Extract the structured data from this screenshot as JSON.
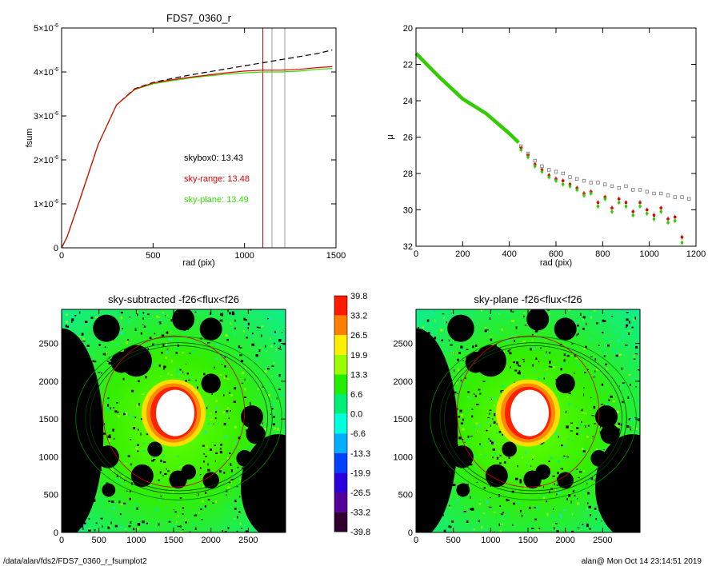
{
  "charts": {
    "growth": {
      "type": "line",
      "title": "FDS7_0360_r",
      "xlabel": "rad (pix)",
      "ylabel": "fsum",
      "xlim": [
        0,
        1500
      ],
      "ylim": [
        0,
        5e-06
      ],
      "xticks": [
        "0",
        "500",
        "1000",
        "1500"
      ],
      "yticks": [
        {
          "v": 0,
          "m": "0",
          "e": ""
        },
        {
          "v": 1e-06,
          "m": "1×10",
          "e": "-6"
        },
        {
          "v": 2e-06,
          "m": "2×10",
          "e": "-6"
        },
        {
          "v": 3e-06,
          "m": "3×10",
          "e": "-6"
        },
        {
          "v": 4e-06,
          "m": "4×10",
          "e": "-6"
        },
        {
          "v": 5e-06,
          "m": "5×10",
          "e": "-6"
        }
      ],
      "vlines": [
        {
          "x": 1100,
          "color": "#e00000"
        },
        {
          "x": 1150,
          "color": "#999999"
        },
        {
          "x": 1220,
          "color": "#999999"
        }
      ],
      "series": [
        {
          "key": "dashed",
          "color": "#000000",
          "dash": "7,4",
          "x": [
            0,
            30,
            100,
            200,
            300,
            400,
            500,
            600,
            700,
            800,
            900,
            1000,
            1100,
            1200,
            1300,
            1400,
            1480
          ],
          "y": [
            0,
            2.5e-07,
            1.1e-06,
            2.35e-06,
            3.25e-06,
            3.62e-06,
            3.76e-06,
            3.85e-06,
            3.93e-06,
            4e-06,
            4.07e-06,
            4.14e-06,
            4.21e-06,
            4.28e-06,
            4.35e-06,
            4.42e-06,
            4.5e-06
          ]
        },
        {
          "key": "sky-plane",
          "color": "#33dd00",
          "dash": "",
          "x": [
            0,
            30,
            100,
            200,
            300,
            400,
            500,
            600,
            700,
            800,
            900,
            1000,
            1100,
            1200,
            1300,
            1400,
            1480
          ],
          "y": [
            0,
            2.5e-07,
            1.1e-06,
            2.35e-06,
            3.25e-06,
            3.6e-06,
            3.73e-06,
            3.8e-06,
            3.86e-06,
            3.91e-06,
            3.95e-06,
            3.98e-06,
            4e-06,
            4e-06,
            4.02e-06,
            4.06e-06,
            4.08e-06
          ]
        },
        {
          "key": "sky-range",
          "color": "#e00000",
          "dash": "",
          "x": [
            0,
            30,
            100,
            200,
            300,
            400,
            500,
            600,
            700,
            800,
            900,
            1000,
            1100,
            1200,
            1300,
            1400,
            1480
          ],
          "y": [
            0,
            2.5e-07,
            1.1e-06,
            2.35e-06,
            3.25e-06,
            3.61e-06,
            3.75e-06,
            3.82e-06,
            3.88e-06,
            3.93e-06,
            3.98e-06,
            4.02e-06,
            4.04e-06,
            4.04e-06,
            4.06e-06,
            4.1e-06,
            4.12e-06
          ]
        }
      ],
      "annotations": [
        {
          "text": "skybox0: 13.43",
          "color": "#000000"
        },
        {
          "text": "sky-range: 13.48",
          "color": "#e00000"
        },
        {
          "text": "sky-plane: 13.49",
          "color": "#33dd00"
        }
      ]
    },
    "profile": {
      "type": "scatter",
      "title": "",
      "xlabel": "rad (pix)",
      "ylabel": "μ",
      "xlim": [
        0,
        1200
      ],
      "ylim": [
        20,
        32
      ],
      "y_inverted": true,
      "xticks": [
        "0",
        "200",
        "400",
        "600",
        "800",
        "1000",
        "1200"
      ],
      "yticks": [
        "20",
        "22",
        "24",
        "26",
        "28",
        "30",
        "32"
      ],
      "series": [
        {
          "key": "skybox0",
          "color": "#777777",
          "marker": "square",
          "x": [
            450,
            480,
            510,
            540,
            570,
            600,
            630,
            660,
            690,
            720,
            750,
            780,
            810,
            840,
            870,
            900,
            930,
            960,
            990,
            1020,
            1050,
            1080,
            1110,
            1140,
            1170
          ],
          "y": [
            26.5,
            26.9,
            27.3,
            27.6,
            27.8,
            27.9,
            28.0,
            28.2,
            28.3,
            28.4,
            28.5,
            28.5,
            28.6,
            28.7,
            28.8,
            28.7,
            28.9,
            28.9,
            29.0,
            29.1,
            29.1,
            29.2,
            29.3,
            29.3,
            29.4
          ]
        },
        {
          "key": "sky-range",
          "color": "#e00000",
          "marker": "circle",
          "x": [
            450,
            480,
            510,
            540,
            570,
            600,
            630,
            660,
            690,
            720,
            750,
            780,
            810,
            840,
            870,
            900,
            930,
            960,
            990,
            1020,
            1050,
            1080,
            1110,
            1140
          ],
          "y": [
            26.6,
            27.0,
            27.5,
            27.8,
            28.1,
            28.3,
            28.4,
            28.6,
            28.8,
            29.1,
            29.0,
            29.6,
            29.3,
            29.9,
            29.4,
            29.6,
            30.1,
            29.6,
            30.0,
            30.3,
            29.9,
            30.5,
            30.4,
            31.5
          ]
        },
        {
          "key": "sky-plane",
          "color": "#33cc00",
          "marker": "circle",
          "x": [
            450,
            480,
            510,
            540,
            570,
            600,
            630,
            660,
            690,
            720,
            750,
            780,
            810,
            840,
            870,
            900,
            930,
            960,
            990,
            1020,
            1050,
            1080,
            1110,
            1140
          ],
          "y": [
            26.7,
            27.1,
            27.6,
            27.9,
            28.2,
            28.4,
            28.6,
            28.7,
            28.9,
            29.2,
            29.1,
            29.8,
            29.4,
            30.1,
            29.6,
            29.8,
            30.3,
            29.8,
            30.2,
            30.5,
            30.1,
            30.7,
            30.6,
            31.8
          ]
        }
      ],
      "band": {
        "x": [
          0,
          100,
          200,
          300,
          400,
          440
        ],
        "y": [
          21.4,
          22.7,
          23.9,
          24.7,
          25.8,
          26.3
        ]
      }
    },
    "image_left": {
      "type": "heatmap",
      "title": "sky-subtracted -f26<flux<f26",
      "xlim": [
        0,
        3000
      ],
      "ylim": [
        0,
        2950
      ],
      "xticks": [
        "0",
        "500",
        "1000",
        "1500",
        "2000",
        "2500"
      ],
      "yticks": [
        "0",
        "500",
        "1000",
        "1500",
        "2000",
        "2500"
      ]
    },
    "image_right": {
      "type": "heatmap",
      "title": "sky-plane -f26<flux<f26",
      "xlim": [
        0,
        3000
      ],
      "ylim": [
        0,
        2950
      ],
      "xticks": [
        "0",
        "500",
        "1000",
        "1500",
        "2000",
        "2500"
      ],
      "yticks": [
        "0",
        "500",
        "1000",
        "1500",
        "2000",
        "2500"
      ]
    },
    "colorbar": {
      "labels": [
        "39.8",
        "33.2",
        "26.5",
        "19.9",
        "13.3",
        "6.6",
        "0.0",
        "-6.6",
        "-13.3",
        "-19.9",
        "-26.5",
        "-33.2",
        "-39.8"
      ],
      "colors": [
        "#ff1a00",
        "#ff8000",
        "#ffee00",
        "#99ff00",
        "#22ee00",
        "#00ee77",
        "#00ffdd",
        "#00b0ff",
        "#0040ff",
        "#2a00dd",
        "#55009a",
        "#300030"
      ]
    }
  },
  "footer": {
    "left": "/data/alan/fds2/FDS7_0360_r_fsumplot2",
    "right": "alan@  Mon Oct 14 23:14:51 2019"
  }
}
